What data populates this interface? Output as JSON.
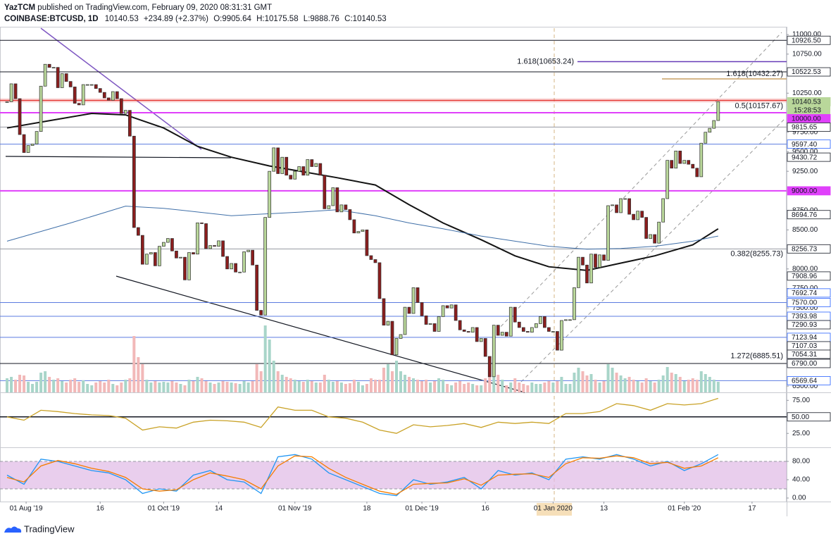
{
  "header": {
    "publisher": "YazTCM",
    "published": "published on TradingView.com, February 09, 2020 08:31:31 GMT",
    "symbol": "COINBASE:BTCUSD, 1D",
    "last": "10140.53",
    "change": "+234.89 (+2.37%)",
    "open": "O:9905.64",
    "high": "H:10175.58",
    "low": "L:9888.76",
    "close": "C:10140.53"
  },
  "chart_data": [
    {
      "type": "candlestick",
      "xlim": [
        -1.67,
        184.17
      ],
      "ylim": [
        6420,
        11082
      ],
      "grid": false,
      "up_color": "#b9d79a",
      "down_color": "#8b1e1e",
      "volume_up_color": "#a8d5c9",
      "volume_down_color": "#f2b8b8",
      "values": [
        10140,
        10370,
        10180,
        9720,
        9490,
        9580,
        9600,
        9760,
        10340,
        10620,
        10580,
        10580,
        10320,
        10500,
        10400,
        10330,
        10120,
        10100,
        10360,
        10360,
        10360,
        10310,
        10260,
        10190,
        10160,
        10270,
        10180,
        9990,
        10030,
        9700,
        8530,
        8430,
        8060,
        8190,
        8210,
        8040,
        8290,
        8340,
        8390,
        8230,
        8140,
        8150,
        7860,
        8210,
        8190,
        8590,
        8580,
        8260,
        8300,
        8290,
        8360,
        8160,
        8000,
        8070,
        7960,
        7960,
        8220,
        8240,
        8050,
        7470,
        7410,
        8660,
        9250,
        9550,
        9220,
        9430,
        9200,
        9150,
        9250,
        9310,
        9200,
        9400,
        9310,
        9350,
        9200,
        8770,
        8810,
        9040,
        8730,
        8820,
        8760,
        8630,
        8460,
        8480,
        8500,
        8170,
        8120,
        8080,
        7620,
        7280,
        7330,
        6900,
        7110,
        7160,
        7510,
        7430,
        7760,
        7570,
        7400,
        7290,
        7300,
        7200,
        7390,
        7530,
        7500,
        7540,
        7340,
        7220,
        7200,
        7190,
        7250,
        7070,
        7110,
        6880,
        6620,
        7280,
        7150,
        7190,
        7140,
        7510,
        7320,
        7250,
        7200,
        7190,
        7250,
        7300,
        7390,
        7250,
        7200,
        7200,
        6960,
        7340,
        7350,
        7350,
        7760,
        8150,
        8050,
        7820,
        8190,
        8020,
        8180,
        8110,
        8810,
        8820,
        8720,
        8900,
        8900,
        8700,
        8630,
        8740,
        8660,
        8390,
        8440,
        8330,
        8600,
        8900,
        9390,
        9290,
        9510,
        9350,
        9390,
        9340,
        9290,
        9180,
        9610,
        9750,
        9800,
        9900,
        10140.53
      ],
      "volume": [
        20,
        22,
        18,
        25,
        24,
        15,
        12,
        15,
        28,
        30,
        22,
        18,
        20,
        16,
        14,
        18,
        20,
        15,
        17,
        12,
        10,
        14,
        16,
        14,
        18,
        12,
        10,
        14,
        18,
        20,
        80,
        50,
        40,
        18,
        14,
        16,
        14,
        15,
        14,
        16,
        14,
        12,
        10,
        18,
        16,
        22,
        20,
        16,
        14,
        12,
        14,
        16,
        15,
        14,
        13,
        12,
        16,
        14,
        16,
        40,
        30,
        95,
        75,
        45,
        30,
        25,
        22,
        20,
        18,
        16,
        15,
        18,
        16,
        14,
        14,
        25,
        18,
        15,
        16,
        14,
        12,
        13,
        18,
        15,
        10,
        12,
        20,
        18,
        18,
        35,
        40,
        30,
        45,
        30,
        25,
        22,
        20,
        18,
        16,
        18,
        14,
        16,
        20,
        18,
        12,
        10,
        14,
        16,
        12,
        14,
        12,
        10,
        10,
        20,
        28,
        40,
        25,
        18,
        10,
        14,
        20,
        14,
        12,
        10,
        14,
        12,
        12,
        14,
        16,
        14,
        16,
        22,
        12,
        12,
        28,
        35,
        30,
        24,
        26,
        18,
        14,
        16,
        40,
        35,
        28,
        24,
        20,
        22,
        18,
        16,
        14,
        20,
        16,
        14,
        18,
        24,
        36,
        28,
        26,
        22,
        16,
        18,
        20,
        18,
        30,
        26,
        22,
        18,
        15
      ],
      "moving_averages": [
        {
          "color": "#131313",
          "x": [
            0,
            8,
            20,
            28,
            37,
            45,
            53,
            62,
            70,
            78,
            87,
            95,
            103,
            112,
            120,
            128,
            137,
            145,
            153,
            162,
            168
          ],
          "values": [
            9804,
            9879,
            9991,
            9972,
            9804,
            9570,
            9430,
            9318,
            9243,
            9168,
            9075,
            8822,
            8589,
            8374,
            8168,
            8028,
            7981,
            8075,
            8168,
            8308,
            8514
          ]
        },
        {
          "color": "#3f6fa8",
          "x": [
            0,
            15,
            28,
            37,
            53,
            70,
            78,
            87,
            95,
            103,
            112,
            120,
            128,
            137,
            145,
            153,
            162,
            168
          ],
          "values": [
            8355,
            8589,
            8804,
            8776,
            8682,
            8729,
            8757,
            8682,
            8589,
            8514,
            8421,
            8355,
            8290,
            8252,
            8262,
            8290,
            8355,
            8421
          ]
        }
      ],
      "yticks": [
        {
          "value": 11000,
          "label": "11000.00"
        },
        {
          "value": 10750,
          "label": "10750.00"
        },
        {
          "value": 10250,
          "label": "10250.00"
        },
        {
          "value": 9750,
          "label": "9750.00"
        },
        {
          "value": 9500,
          "label": "9500.00"
        },
        {
          "value": 9250,
          "label": "9250.00"
        },
        {
          "value": 8750,
          "label": "8750.00"
        },
        {
          "value": 8500,
          "label": "8500.00"
        },
        {
          "value": 8000,
          "label": "8000.00"
        },
        {
          "value": 7750,
          "label": "7750.00"
        },
        {
          "value": 7500,
          "label": "7500.00"
        },
        {
          "value": 6500,
          "label": "6500.00"
        }
      ],
      "xticks": [
        {
          "value": 4.5,
          "label": "01 Aug '19"
        },
        {
          "value": 22,
          "label": "16"
        },
        {
          "value": 37,
          "label": "01 Oct '19"
        },
        {
          "value": 50,
          "label": "14"
        },
        {
          "value": 68,
          "label": "01 Nov '19"
        },
        {
          "value": 85,
          "label": "18"
        },
        {
          "value": 98,
          "label": "01 Dec '19"
        },
        {
          "value": 113,
          "label": "16"
        },
        {
          "value": 129,
          "label": "01 Jan 2020"
        },
        {
          "value": 141,
          "label": "13"
        },
        {
          "value": 160,
          "label": "01 Feb '20"
        },
        {
          "value": 176,
          "label": "17"
        }
      ],
      "levels": [
        {
          "value": 10926.5,
          "label": "10926.50",
          "color": "#131722",
          "fill": "#ffffff",
          "line": "#131722"
        },
        {
          "value": 10522.53,
          "label": "10522.53",
          "color": "#131722",
          "fill": "#ffffff",
          "line": "#131722"
        },
        {
          "value": 10140.53,
          "label": "10140.53",
          "color": "#131722",
          "fill": "#b9d79a",
          "line": null
        },
        {
          "value": 10000,
          "label": "10000.00",
          "color": "#ffffff",
          "fill": "#e040fb",
          "line": "#e040fb"
        },
        {
          "value": 9815.65,
          "label": "9815.65",
          "color": "#131722",
          "fill": "#ffffff",
          "line": "#9598a1"
        },
        {
          "value": 9597.4,
          "label": "9597.40",
          "color": "#2962ff",
          "fill": "#ffffff",
          "line": "#5b7be0"
        },
        {
          "value": 9430.72,
          "label": "9430.72",
          "color": "#131722",
          "fill": "#ffffff",
          "line": null
        },
        {
          "value": 9000,
          "label": "9000.00",
          "color": "#ffffff",
          "fill": "#e040fb",
          "line": "#e040fb"
        },
        {
          "value": 8694.76,
          "label": "8694.76",
          "color": "#131722",
          "fill": "#ffffff",
          "line": null
        },
        {
          "value": 8256.73,
          "label": "8256.73",
          "color": "#131722",
          "fill": "#ffffff",
          "line": "#9598a1"
        },
        {
          "value": 7908.96,
          "label": "7908.96",
          "color": "#131722",
          "fill": "#ffffff",
          "line": null
        },
        {
          "value": 7692.74,
          "label": "7692.74",
          "color": "#2962ff",
          "fill": "#ffffff",
          "line": null
        },
        {
          "value": 7570,
          "label": "7570.00",
          "color": "#2962ff",
          "fill": "#ffffff",
          "line": "#5b7be0"
        },
        {
          "value": 7393.98,
          "label": "7393.98",
          "color": "#2962ff",
          "fill": "#ffffff",
          "line": "#5b7be0"
        },
        {
          "value": 7290.93,
          "label": "7290.93",
          "color": "#131722",
          "fill": "#ffffff",
          "line": null
        },
        {
          "value": 7123.94,
          "label": "7123.94",
          "color": "#2962ff",
          "fill": "#ffffff",
          "line": "#5b7be0"
        },
        {
          "value": 7107.03,
          "label": "7107.03",
          "color": "#131722",
          "fill": "#ffffff",
          "line": null
        },
        {
          "value": 7054.31,
          "label": "7054.31",
          "color": "#131722",
          "fill": "#ffffff",
          "line": null
        },
        {
          "value": 6790,
          "label": "6790.00",
          "color": "#131722",
          "fill": "#ffffff",
          "line": "#131722"
        },
        {
          "value": 6569.64,
          "label": "6569.64",
          "color": "#2962ff",
          "fill": "#ffffff",
          "line": "#5b7be0"
        }
      ],
      "countdown": "15:28:53",
      "annotations": [
        {
          "text": "1.618(10653.24)",
          "value": 10653.24,
          "color": "#673ab7"
        },
        {
          "text": "1.618(10432.27)",
          "value": 10432.27,
          "color": "#c8a165"
        },
        {
          "text": "0.5(10157.67)",
          "value": 10157.67,
          "color": "#e53935"
        },
        {
          "text": "0.382(8255.73)",
          "value": 8255.73,
          "color": "#7cb342"
        },
        {
          "text": "1.272(6885.51)",
          "value": 6885.51,
          "color": "#7cb342"
        }
      ]
    },
    {
      "type": "line",
      "xlim": [
        -1.67,
        184.17
      ],
      "ylim": [
        5,
        86
      ],
      "x": [
        0,
        4,
        8,
        12,
        16,
        20,
        24,
        28,
        32,
        36,
        40,
        44,
        48,
        52,
        56,
        60,
        64,
        68,
        72,
        76,
        80,
        84,
        88,
        92,
        96,
        100,
        104,
        108,
        112,
        116,
        120,
        124,
        128,
        132,
        136,
        140,
        144,
        148,
        152,
        156,
        160,
        164,
        168
      ],
      "series": [
        {
          "color": "#c9a227",
          "values": [
            50,
            45,
            60,
            58,
            55,
            53,
            52,
            48,
            30,
            35,
            33,
            42,
            45,
            44,
            42,
            34,
            65,
            60,
            60,
            50,
            48,
            42,
            30,
            25,
            38,
            35,
            37,
            40,
            34,
            42,
            40,
            42,
            40,
            55,
            55,
            58,
            70,
            67,
            60,
            70,
            68,
            70,
            78
          ]
        }
      ],
      "yticks": [
        {
          "value": 75,
          "label": "75.00"
        },
        {
          "value": 25,
          "label": "25.00"
        }
      ],
      "ref_line": {
        "value": 50,
        "label": "50.00"
      }
    },
    {
      "type": "line",
      "xlim": [
        -1.67,
        184.17
      ],
      "ylim": [
        -7.7,
        107.7
      ],
      "x": [
        0,
        4,
        8,
        12,
        16,
        20,
        24,
        28,
        32,
        36,
        40,
        44,
        48,
        52,
        56,
        60,
        64,
        68,
        72,
        76,
        80,
        84,
        88,
        92,
        96,
        100,
        104,
        108,
        112,
        116,
        120,
        124,
        128,
        132,
        136,
        140,
        144,
        148,
        152,
        156,
        160,
        164,
        168
      ],
      "series": [
        {
          "color": "#2196f3",
          "values": [
            50,
            30,
            85,
            80,
            70,
            60,
            55,
            40,
            10,
            20,
            15,
            50,
            60,
            40,
            35,
            10,
            90,
            95,
            85,
            55,
            40,
            25,
            10,
            5,
            40,
            30,
            35,
            45,
            20,
            60,
            50,
            55,
            40,
            85,
            90,
            85,
            95,
            85,
            70,
            80,
            60,
            75,
            95
          ]
        },
        {
          "color": "#f57c00",
          "values": [
            45,
            35,
            70,
            82,
            75,
            65,
            58,
            45,
            20,
            15,
            18,
            40,
            55,
            48,
            40,
            20,
            70,
            92,
            90,
            65,
            45,
            30,
            15,
            8,
            30,
            32,
            33,
            42,
            28,
            50,
            52,
            53,
            45,
            75,
            88,
            87,
            92,
            88,
            75,
            78,
            65,
            70,
            88
          ]
        }
      ],
      "band": [
        20,
        80
      ],
      "yticks": [
        {
          "value": 80,
          "label": "80.00"
        },
        {
          "value": 40,
          "label": "40.00"
        },
        {
          "value": 0,
          "label": "0.00"
        }
      ]
    }
  ],
  "footer": {
    "brand": "TradingView"
  }
}
